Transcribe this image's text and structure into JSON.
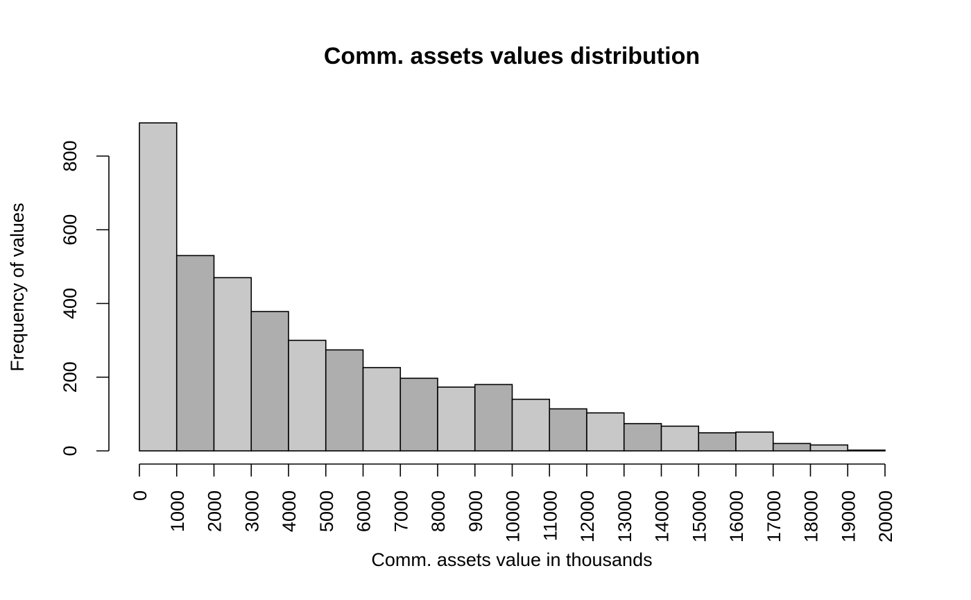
{
  "chart_data": {
    "type": "bar",
    "title": "Comm. assets values distribution",
    "xlabel": "Comm. assets value in thousands",
    "ylabel": "Frequency of values",
    "bin_edges": [
      0,
      1000,
      2000,
      3000,
      4000,
      5000,
      6000,
      7000,
      8000,
      9000,
      10000,
      11000,
      12000,
      13000,
      14000,
      15000,
      16000,
      17000,
      18000,
      19000,
      20000
    ],
    "values": [
      890,
      530,
      470,
      378,
      300,
      274,
      226,
      197,
      173,
      180,
      140,
      114,
      103,
      74,
      67,
      49,
      51,
      20,
      16,
      2
    ],
    "xlim": [
      0,
      20000
    ],
    "ylim": [
      0,
      800
    ],
    "x_ticks": [
      "0",
      "1000",
      "2000",
      "3000",
      "4000",
      "5000",
      "6000",
      "7000",
      "8000",
      "9000",
      "10000",
      "11000",
      "12000",
      "13000",
      "14000",
      "15000",
      "16000",
      "17000",
      "18000",
      "19000",
      "20000"
    ],
    "y_ticks": [
      "0",
      "200",
      "400",
      "600",
      "800"
    ],
    "bar_colors": [
      "#c8c8c8",
      "#aeaeae"
    ],
    "grid": false,
    "legend": "none"
  }
}
